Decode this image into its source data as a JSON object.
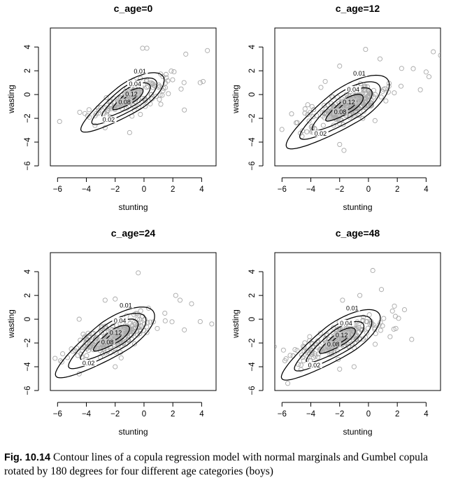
{
  "caption": {
    "label": "Fig. 10.14",
    "text": "Contour lines of a copula regression model with normal marginals and Gumbel copula rotated by 180 degrees for four different age categories (boys)"
  },
  "colors": {
    "points": "#a8a8a8",
    "fill": "#c4c4c4",
    "lines": "#000000"
  },
  "chart_data": [
    {
      "type": "scatter",
      "title": "c_age=0",
      "xlabel": "stunting",
      "ylabel": "wasting",
      "xlim": [
        -6.5,
        5.0
      ],
      "ylim": [
        -6.0,
        5.6
      ],
      "xticks": [
        -6,
        -4,
        -2,
        0,
        2,
        4
      ],
      "yticks": [
        -6,
        -4,
        -2,
        0,
        2,
        4
      ],
      "contour_levels": [
        0.01,
        0.02,
        0.04,
        0.08,
        0.12
      ],
      "center": [
        -0.9,
        -0.2
      ],
      "n_points": 150,
      "extra_points": [
        [
          -0.1,
          3.9
        ],
        [
          0.2,
          3.9
        ],
        [
          2.9,
          3.4
        ],
        [
          4.4,
          3.7
        ],
        [
          3.9,
          1.0
        ],
        [
          4.1,
          1.1
        ],
        [
          2.8,
          -1.3
        ],
        [
          -4.1,
          -1.6
        ],
        [
          -2.7,
          -2.8
        ],
        [
          -1.0,
          -3.2
        ],
        [
          -3.4,
          -2.6
        ]
      ]
    },
    {
      "type": "scatter",
      "title": "c_age=12",
      "xlabel": "stunting",
      "ylabel": "wasting",
      "xlim": [
        -6.5,
        5.0
      ],
      "ylim": [
        -6.0,
        5.6
      ],
      "xticks": [
        -6,
        -4,
        -2,
        0,
        2,
        4
      ],
      "yticks": [
        -6,
        -4,
        -2,
        0,
        2,
        4
      ],
      "contour_levels": [
        0.01,
        0.02,
        0.04,
        0.08,
        0.12
      ],
      "center": [
        -1.4,
        -0.9
      ],
      "n_points": 220,
      "extra_points": [
        [
          -0.2,
          3.8
        ],
        [
          0.8,
          3.0
        ],
        [
          2.3,
          2.2
        ],
        [
          4.5,
          3.6
        ],
        [
          5.0,
          3.3
        ],
        [
          4.0,
          1.9
        ],
        [
          4.2,
          1.5
        ],
        [
          3.6,
          0.4
        ],
        [
          -3.3,
          0.6
        ],
        [
          -3.0,
          1.1
        ],
        [
          -2.0,
          2.4
        ],
        [
          -4.4,
          -1.2
        ],
        [
          -2.0,
          -4.2
        ],
        [
          -1.7,
          -4.7
        ]
      ]
    },
    {
      "type": "scatter",
      "title": "c_age=24",
      "xlabel": "stunting",
      "ylabel": "wasting",
      "xlim": [
        -6.5,
        5.0
      ],
      "ylim": [
        -6.0,
        5.6
      ],
      "xticks": [
        -6,
        -4,
        -2,
        0,
        2,
        4
      ],
      "yticks": [
        -6,
        -4,
        -2,
        0,
        2,
        4
      ],
      "contour_levels": [
        0.01,
        0.02,
        0.04,
        0.08,
        0.12
      ],
      "center": [
        -2.0,
        -1.4
      ],
      "n_points": 200,
      "extra_points": [
        [
          -0.4,
          3.9
        ],
        [
          2.2,
          2.0
        ],
        [
          2.5,
          1.6
        ],
        [
          3.3,
          1.3
        ],
        [
          3.9,
          -0.2
        ],
        [
          4.7,
          -0.4
        ],
        [
          2.8,
          -0.9
        ],
        [
          -2.7,
          1.6
        ],
        [
          -2.0,
          1.7
        ],
        [
          -4.5,
          0.0
        ],
        [
          -5.7,
          -3.6
        ],
        [
          -5.8,
          -3.5
        ],
        [
          -4.5,
          -4.6
        ],
        [
          -2.0,
          -4.0
        ]
      ]
    },
    {
      "type": "scatter",
      "title": "c_age=48",
      "xlabel": "stunting",
      "ylabel": "wasting",
      "xlim": [
        -6.5,
        5.0
      ],
      "ylim": [
        -6.0,
        5.6
      ],
      "xticks": [
        -6,
        -4,
        -2,
        0,
        2,
        4
      ],
      "yticks": [
        -6,
        -4,
        -2,
        0,
        2,
        4
      ],
      "contour_levels": [
        0.01,
        0.02,
        0.04,
        0.08,
        0.12
      ],
      "center": [
        -1.9,
        -1.6
      ],
      "n_points": 200,
      "extra_points": [
        [
          0.3,
          4.1
        ],
        [
          0.9,
          2.5
        ],
        [
          -1.8,
          1.6
        ],
        [
          -0.6,
          2.0
        ],
        [
          2.5,
          0.8
        ],
        [
          1.8,
          1.1
        ],
        [
          3.0,
          -1.7
        ],
        [
          -5.9,
          -2.6
        ],
        [
          -5.8,
          -3.5
        ],
        [
          -5.6,
          -5.4
        ],
        [
          -4.5,
          -3.5
        ],
        [
          -2.0,
          -4.2
        ],
        [
          -1.0,
          -4.0
        ]
      ]
    }
  ]
}
